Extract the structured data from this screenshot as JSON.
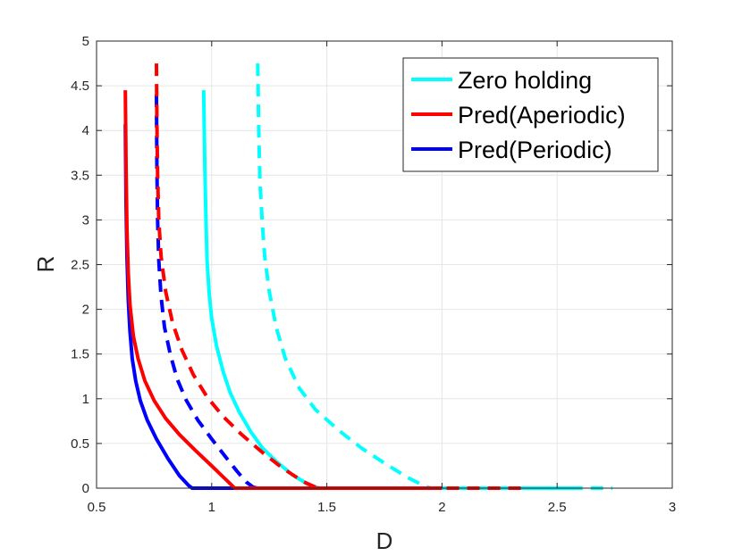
{
  "chart_data": {
    "type": "line",
    "title": "",
    "xlabel": "D",
    "ylabel": "R",
    "xlim": [
      0.5,
      3
    ],
    "ylim": [
      0,
      5
    ],
    "xticks": [
      "0.5",
      "1",
      "1.5",
      "2",
      "2.5",
      "3"
    ],
    "yticks": [
      "0",
      "0.5",
      "1",
      "1.5",
      "2",
      "2.5",
      "3",
      "3.5",
      "4",
      "4.5",
      "5"
    ],
    "grid": true,
    "legend_position": "top-right",
    "legend": [
      {
        "label": "Zero holding",
        "color": "#00ffff"
      },
      {
        "label": "Pred(Aperiodic)",
        "color": "#ff0000"
      },
      {
        "label": "Pred(Periodic)",
        "color": "#0000ff"
      }
    ],
    "series": [
      {
        "name": "Zero holding (solid)",
        "color": "#00ffff",
        "style": "solid",
        "x": [
          0.965,
          0.97,
          0.975,
          0.98,
          0.99,
          1.0,
          1.02,
          1.05,
          1.08,
          1.12,
          1.17,
          1.22,
          1.28,
          1.35,
          1.42,
          1.47,
          1.6,
          2.0,
          2.56
        ],
        "y": [
          4.45,
          3.6,
          3.0,
          2.55,
          2.15,
          1.9,
          1.6,
          1.3,
          1.07,
          0.85,
          0.63,
          0.45,
          0.3,
          0.15,
          0.04,
          0.0,
          0.0,
          0.0,
          0.0
        ]
      },
      {
        "name": "Zero holding (dashed)",
        "color": "#00ffff",
        "style": "dashed",
        "x": [
          1.2,
          1.205,
          1.21,
          1.22,
          1.23,
          1.25,
          1.28,
          1.32,
          1.38,
          1.45,
          1.55,
          1.65,
          1.75,
          1.85,
          1.92,
          1.95,
          2.2,
          2.5,
          2.74
        ],
        "y": [
          4.75,
          3.9,
          3.4,
          2.95,
          2.6,
          2.2,
          1.8,
          1.45,
          1.12,
          0.88,
          0.65,
          0.45,
          0.28,
          0.12,
          0.03,
          0.0,
          0.0,
          0.0,
          0.0
        ]
      },
      {
        "name": "Pred(Aperiodic) (solid)",
        "color": "#ff0000",
        "style": "solid",
        "x": [
          0.625,
          0.628,
          0.632,
          0.638,
          0.645,
          0.66,
          0.68,
          0.71,
          0.75,
          0.8,
          0.86,
          0.93,
          1.0,
          1.06,
          1.1,
          1.3,
          1.6,
          2.0
        ],
        "y": [
          4.45,
          3.6,
          2.9,
          2.4,
          2.05,
          1.7,
          1.45,
          1.2,
          0.98,
          0.78,
          0.6,
          0.42,
          0.25,
          0.1,
          0.0,
          0.0,
          0.0,
          0.0
        ]
      },
      {
        "name": "Pred(Aperiodic) (dashed)",
        "color": "#ff0000",
        "style": "dashed",
        "x": [
          0.76,
          0.762,
          0.765,
          0.77,
          0.78,
          0.8,
          0.83,
          0.87,
          0.92,
          0.98,
          1.05,
          1.13,
          1.22,
          1.31,
          1.4,
          1.46,
          1.8,
          2.1,
          2.35
        ],
        "y": [
          4.75,
          4.1,
          3.5,
          3.0,
          2.6,
          2.2,
          1.85,
          1.55,
          1.27,
          1.02,
          0.8,
          0.6,
          0.4,
          0.22,
          0.07,
          0.0,
          0.0,
          0.0,
          0.0
        ]
      },
      {
        "name": "Pred(Periodic) (solid)",
        "color": "#0000ff",
        "style": "solid",
        "x": [
          0.625,
          0.628,
          0.632,
          0.638,
          0.645,
          0.655,
          0.67,
          0.69,
          0.72,
          0.76,
          0.81,
          0.86,
          0.9,
          0.915,
          1.0,
          1.2
        ],
        "y": [
          4.07,
          3.2,
          2.6,
          2.1,
          1.75,
          1.45,
          1.2,
          0.98,
          0.76,
          0.55,
          0.33,
          0.14,
          0.03,
          0.0,
          0.0,
          0.0
        ]
      },
      {
        "name": "Pred(Periodic) (dashed)",
        "color": "#0000ff",
        "style": "dashed",
        "x": [
          0.76,
          0.762,
          0.765,
          0.77,
          0.78,
          0.795,
          0.82,
          0.85,
          0.89,
          0.94,
          1.0,
          1.06,
          1.11,
          1.15,
          1.18,
          1.2,
          1.25
        ],
        "y": [
          4.4,
          3.6,
          3.0,
          2.55,
          2.15,
          1.8,
          1.5,
          1.22,
          0.98,
          0.76,
          0.55,
          0.35,
          0.19,
          0.07,
          0.01,
          0.0,
          0.0
        ]
      }
    ]
  }
}
